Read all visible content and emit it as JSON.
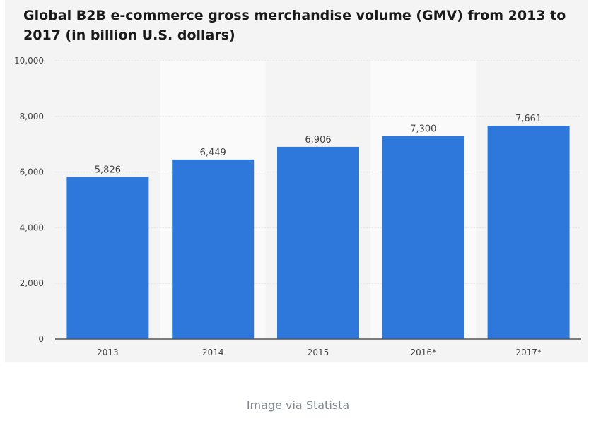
{
  "chart_data": {
    "type": "bar",
    "title": "Global B2B e-commerce gross merchandise volume (GMV) from 2013 to 2017 (in billion U.S. dollars)",
    "categories": [
      "2013",
      "2014",
      "2015",
      "2016*",
      "2017*"
    ],
    "values": [
      5826,
      6449,
      6906,
      7300,
      7661
    ],
    "value_labels": [
      "5,826",
      "6,449",
      "6,906",
      "7,300",
      "7,661"
    ],
    "yticks": [
      0,
      2000,
      4000,
      6000,
      8000,
      10000
    ],
    "ytick_labels": [
      "0",
      "2,000",
      "4,000",
      "6,000",
      "8,000",
      "10,000"
    ],
    "ylim": [
      0,
      10000
    ],
    "xlabel": "",
    "ylabel": "",
    "grid": true,
    "legend": "none",
    "colors": {
      "bar": "#2f78db",
      "background": "#f4f4f4",
      "band": "#fafafa",
      "grid": "#e2e2e2",
      "axis": "#555555",
      "text": "#444444"
    }
  },
  "caption": "Image via Statista"
}
